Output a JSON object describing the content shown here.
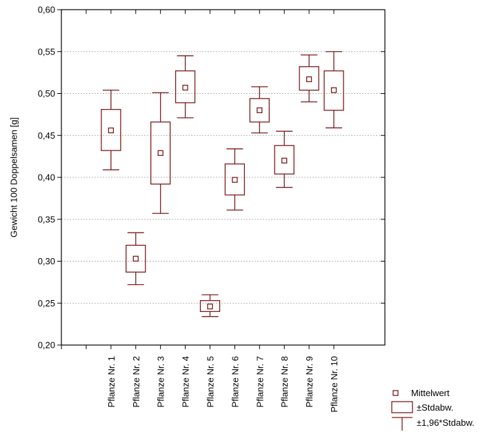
{
  "chart_data": {
    "type": "boxplot",
    "ylabel": "Gewicht 100 Doppelsamen [g]",
    "ylim": [
      0.2,
      0.6
    ],
    "yticks": [
      0.2,
      0.25,
      0.3,
      0.35,
      0.4,
      0.45,
      0.5,
      0.55,
      0.6
    ],
    "ytick_labels": [
      "0,20",
      "0,25",
      "0,30",
      "0,35",
      "0,40",
      "0,45",
      "0,50",
      "0,55",
      "0,60"
    ],
    "grid": true,
    "legend_position": "bottom-right",
    "color": "#7b1c1c",
    "categories": [
      "Pflanze Nr. 1",
      "Pflanze Nr. 2",
      "Pflanze Nr. 3",
      "Pflanze Nr. 4",
      "Pflanze Nr. 5",
      "Pflanze Nr. 6",
      "Pflanze Nr. 7",
      "Pflanze Nr. 8",
      "Pflanze Nr. 9",
      "Pflanze Nr. 10"
    ],
    "mean": [
      0.456,
      0.303,
      0.429,
      0.507,
      0.246,
      0.397,
      0.48,
      0.42,
      0.517,
      0.504
    ],
    "std_low": [
      0.432,
      0.287,
      0.392,
      0.489,
      0.24,
      0.379,
      0.466,
      0.404,
      0.504,
      0.48
    ],
    "std_high": [
      0.481,
      0.319,
      0.466,
      0.527,
      0.253,
      0.416,
      0.494,
      0.438,
      0.532,
      0.527
    ],
    "ci_low": [
      0.409,
      0.272,
      0.357,
      0.471,
      0.234,
      0.361,
      0.453,
      0.388,
      0.49,
      0.459
    ],
    "ci_high": [
      0.504,
      0.334,
      0.501,
      0.545,
      0.26,
      0.434,
      0.508,
      0.455,
      0.546,
      0.55
    ],
    "legend": {
      "mean_label": "Mittelwert",
      "box_label": "±Stdabw.",
      "whisker_label": "±1,96*Stdabw."
    }
  }
}
